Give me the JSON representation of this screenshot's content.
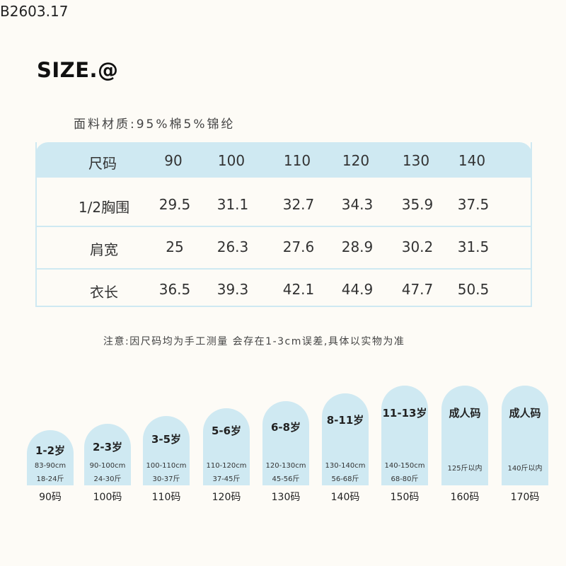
{
  "product_code": "B2603.17",
  "brand": "SIZE.@",
  "material": "面料材质:95%棉5%锦纶",
  "table": {
    "headers": [
      "尺码",
      "90",
      "100",
      "110",
      "120",
      "130",
      "140"
    ],
    "rows": [
      [
        "1/2胸围",
        "29.5",
        "31.1",
        "32.7",
        "34.3",
        "35.9",
        "37.5"
      ],
      [
        "肩宽",
        "25",
        "26.3",
        "27.6",
        "28.9",
        "30.2",
        "31.5"
      ],
      [
        "衣长",
        "36.5",
        "39.3",
        "42.1",
        "44.9",
        "47.7",
        "50.5"
      ]
    ]
  },
  "note": "注意:因尺码均为手工测量 会存在1-3cm误差,具体以实物为准",
  "sizes": [
    {
      "age": "1-2岁",
      "height": "83-90cm",
      "weight": "18-24斤",
      "label": "90码"
    },
    {
      "age": "2-3岁",
      "height": "90-100cm",
      "weight": "24-30斤",
      "label": "100码"
    },
    {
      "age": "3-5岁",
      "height": "100-110cm",
      "weight": "30-37斤",
      "label": "110码"
    },
    {
      "age": "5-6岁",
      "height": "110-120cm",
      "weight": "37-45斤",
      "label": "120码"
    },
    {
      "age": "6-8岁",
      "height": "120-130cm",
      "weight": "45-56斤",
      "label": "130码"
    },
    {
      "age": "8-11岁",
      "height": "130-140cm",
      "weight": "56-68斤",
      "label": "140码"
    },
    {
      "age": "11-13岁",
      "height": "140-150cm",
      "weight": "68-80斤",
      "label": "150码"
    },
    {
      "age": "成人码",
      "height": "125斤以内",
      "weight": "",
      "label": "160码"
    },
    {
      "age": "成人码",
      "height": "140斤以内",
      "weight": "",
      "label": "170码"
    }
  ],
  "colors": {
    "accent": "#cfe9f2",
    "background": "#fdfbf6"
  }
}
